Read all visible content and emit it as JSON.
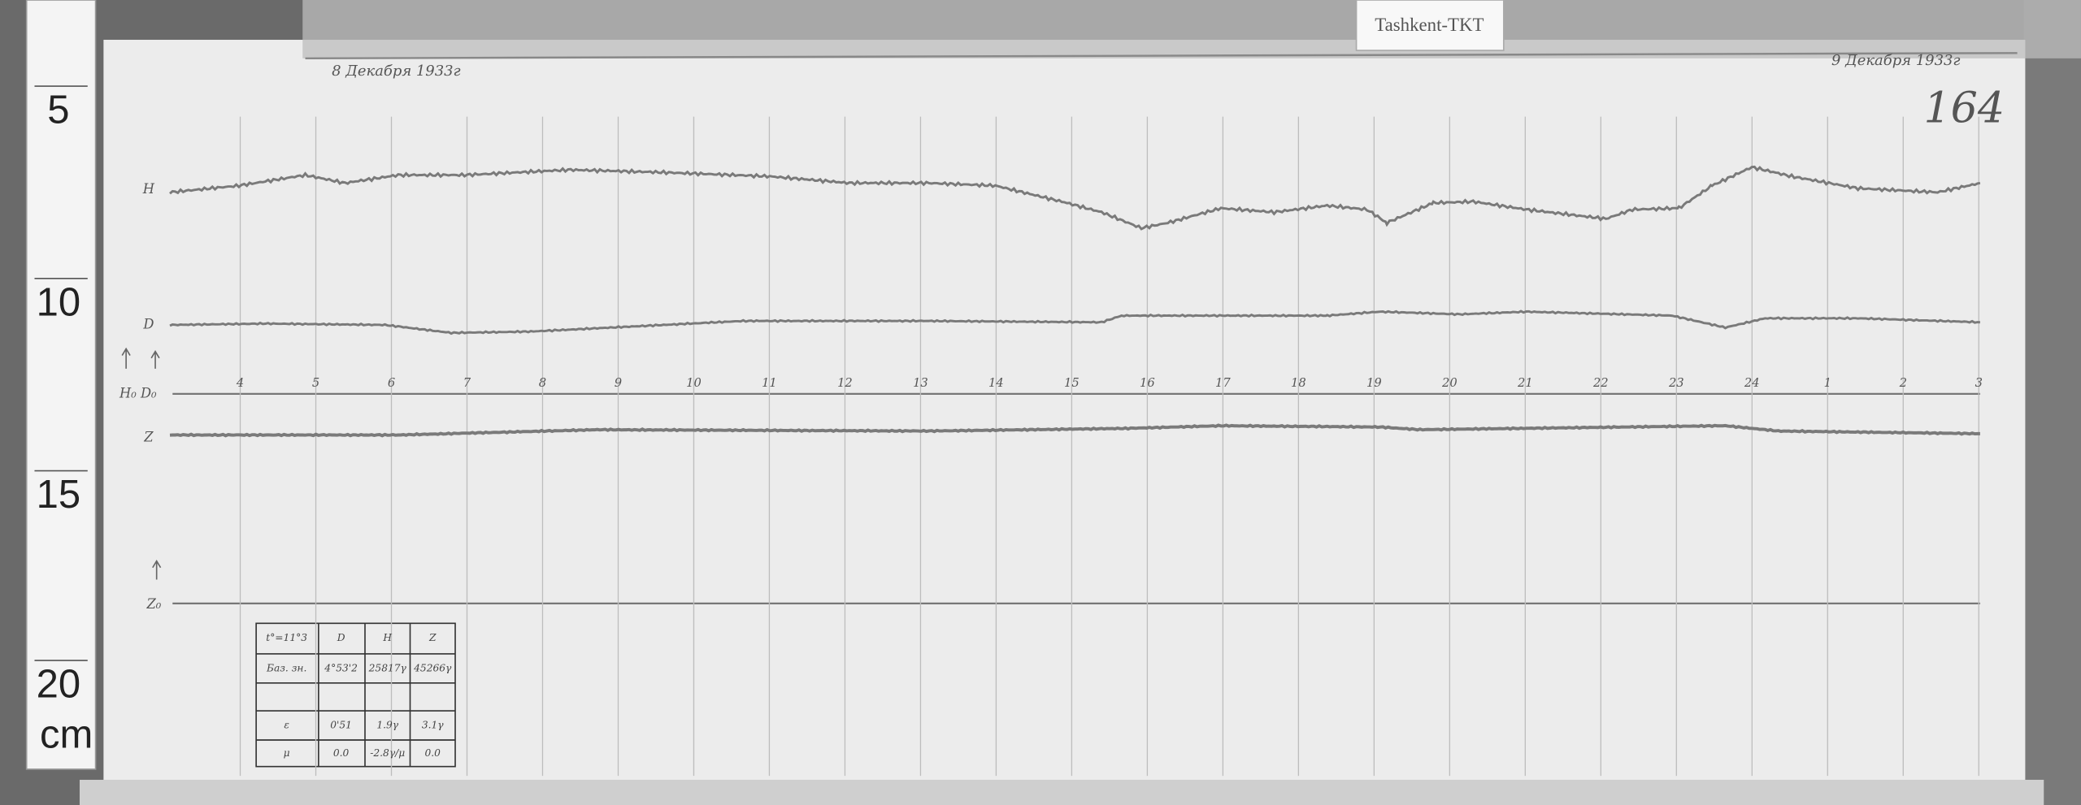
{
  "tag": "Tashkent-TKT",
  "ruler": {
    "labels": [
      "5",
      "10",
      "15",
      "20"
    ],
    "unit": "cm"
  },
  "header": {
    "date_start": "8 Декабря 1933г",
    "date_end": "9 Декабря 1933г",
    "sheet_number": "164"
  },
  "traces": {
    "labels": [
      "H",
      "D",
      "H₀ D₀",
      "Z",
      "Z₀"
    ]
  },
  "hours": [
    "4",
    "5",
    "6",
    "7",
    "8",
    "9",
    "10",
    "11",
    "12",
    "13",
    "14",
    "15",
    "16",
    "17",
    "18",
    "19",
    "20",
    "21",
    "22",
    "23",
    "24",
    "1",
    "2",
    "3"
  ],
  "table": {
    "rows": [
      [
        "t°=11°3",
        "D",
        "H",
        "Z"
      ],
      [
        "Баз. зн.",
        "4°53'2",
        "25817γ",
        "45266γ"
      ],
      [
        "ε",
        "0'51",
        "1.9γ",
        "3.1γ"
      ],
      [
        "μ",
        "0.0",
        "-2.8γ/μ",
        "0.0"
      ]
    ]
  }
}
